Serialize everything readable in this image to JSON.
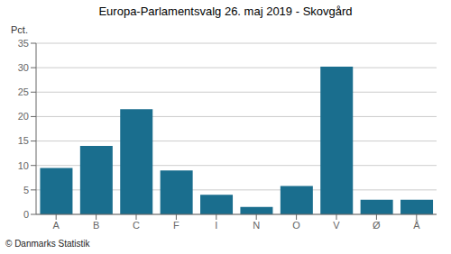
{
  "chart_data": {
    "type": "bar",
    "title": "Europa-Parlamentsvalg 26. maj 2019 - Skovgård",
    "categories": [
      "A",
      "B",
      "C",
      "F",
      "I",
      "N",
      "O",
      "V",
      "Ø",
      "Å"
    ],
    "values": [
      9.5,
      14.0,
      21.5,
      9.0,
      4.0,
      1.5,
      5.8,
      30.2,
      3.0,
      3.0
    ],
    "color": "#1a6e8e",
    "ylabel": "Pct.",
    "ylim": [
      0,
      35
    ],
    "yticks": [
      0,
      5,
      10,
      15,
      20,
      25,
      30,
      35
    ],
    "grid": true,
    "footer": "© Danmarks Statistik"
  }
}
